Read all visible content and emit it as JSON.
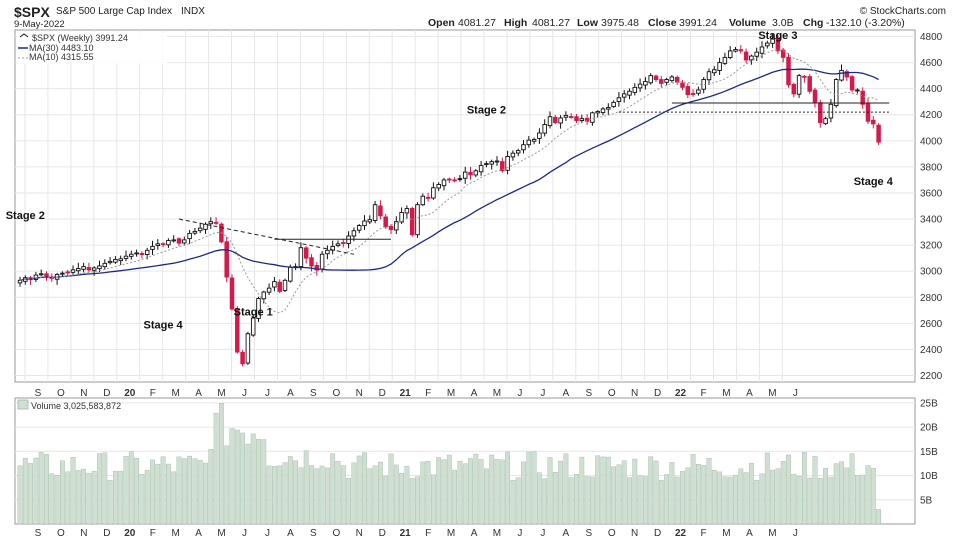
{
  "header": {
    "symbol": "$SPX",
    "name": "S&P 500 Large Cap Index",
    "exchange": "INDX",
    "date": "9-May-2022",
    "brand": "© StockCharts.com",
    "open_label": "Open",
    "open": "4081.27",
    "high_label": "High",
    "high": "4081.27",
    "low_label": "Low",
    "low": "3975.48",
    "close_label": "Close",
    "close": "3991.24",
    "volume_label": "Volume",
    "volume": "3.0B",
    "chg_label": "Chg",
    "chg": "-132.10 (-3.20%)"
  },
  "legend": {
    "series_main": "$SPX (Weekly) 3991.24",
    "ma30": "MA(30) 4483.10",
    "ma10": "MA(10) 4315.55",
    "volume": "Volume 3,025,583,872"
  },
  "colors": {
    "up": "#111111",
    "down": "#d5194a",
    "ma30": "#1a2a8c",
    "ma10": "#999999",
    "volume_bar": "#cfe0d3",
    "volume_edge": "#9db7a3",
    "grid": "#e6e6e6"
  },
  "chart_data": [
    {
      "type": "candlestick",
      "series_name": "$SPX (Weekly)",
      "x_labels": [
        "S",
        "O",
        "N",
        "D",
        "20",
        "F",
        "M",
        "A",
        "M",
        "J",
        "J",
        "A",
        "S",
        "O",
        "N",
        "D",
        "21",
        "F",
        "M",
        "A",
        "M",
        "J",
        "J",
        "A",
        "S",
        "O",
        "N",
        "D",
        "22",
        "F",
        "M",
        "A",
        "M",
        "J"
      ],
      "y_ticks": [
        2200,
        2400,
        2600,
        2800,
        3000,
        3200,
        3400,
        3600,
        3800,
        4000,
        4200,
        4400,
        4600,
        4800
      ],
      "ylim": [
        2150,
        4850
      ],
      "annotations": [
        {
          "text": "Stage 2",
          "week": 1,
          "price": 3400
        },
        {
          "text": "Stage 4",
          "week": 27,
          "price": 2560
        },
        {
          "text": "Stage 1",
          "week": 44,
          "price": 2660
        },
        {
          "text": "Stage 2",
          "week": 88,
          "price": 4210
        },
        {
          "text": "Stage 3",
          "week": 143,
          "price": 4780
        },
        {
          "text": "Stage 4",
          "week": 161,
          "price": 3660
        }
      ],
      "weekly_close": [
        2930,
        2950,
        2935,
        2970,
        2980,
        2960,
        2945,
        2975,
        2985,
        2990,
        3010,
        3020,
        3035,
        3010,
        3025,
        3040,
        3060,
        3075,
        3090,
        3095,
        3115,
        3130,
        3140,
        3135,
        3160,
        3190,
        3210,
        3205,
        3235,
        3240,
        3215,
        3240,
        3290,
        3305,
        3330,
        3360,
        3380,
        3370,
        3225,
        2955,
        2710,
        2380,
        2290,
        2520,
        2640,
        2790,
        2840,
        2870,
        2920,
        2845,
        2930,
        3030,
        3035,
        3180,
        3100,
        3040,
        3010,
        3130,
        3160,
        3190,
        3210,
        3215,
        3270,
        3310,
        3350,
        3385,
        3395,
        3510,
        3425,
        3340,
        3320,
        3380,
        3450,
        3480,
        3280,
        3510,
        3575,
        3560,
        3640,
        3665,
        3700,
        3705,
        3700,
        3710,
        3760,
        3740,
        3770,
        3810,
        3825,
        3840,
        3845,
        3770,
        3880,
        3905,
        3925,
        3970,
        4005,
        4010,
        4060,
        4125,
        4185,
        4140,
        4175,
        4195,
        4185,
        4155,
        4170,
        4150,
        4215,
        4225,
        4245,
        4255,
        4295,
        4330,
        4360,
        4380,
        4410,
        4435,
        4455,
        4500,
        4470,
        4440,
        4470,
        4490,
        4450,
        4410,
        4355,
        4360,
        4390,
        4470,
        4530,
        4545,
        4600,
        4640,
        4690,
        4700,
        4690,
        4620,
        4650,
        4680,
        4720,
        4750,
        4780,
        4690,
        4640,
        4430,
        4360,
        4500,
        4490,
        4380,
        4290,
        4140,
        4170,
        4280,
        4470,
        4540,
        4490,
        4390,
        4390,
        4280,
        4150,
        4130,
        3990
      ],
      "moving_averages": [
        "MA(30)",
        "MA(10)"
      ],
      "volume_ticks": [
        "5B",
        "10B",
        "15B",
        "20B",
        "25B"
      ],
      "volume_ylim": [
        0,
        26
      ]
    }
  ]
}
